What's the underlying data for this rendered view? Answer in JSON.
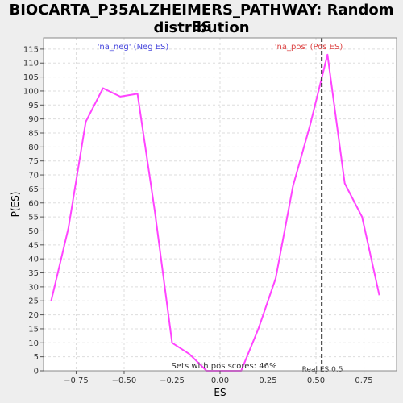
{
  "chart_data": {
    "type": "line",
    "title_lines": [
      "BIOCARTA_P35ALZHEIMERS_PATHWAY: Random ES",
      "distribution"
    ],
    "xlabel": "ES",
    "ylabel": "P(ES)",
    "xlim": [
      -0.92,
      0.92
    ],
    "ylim": [
      0,
      119
    ],
    "x_ticks": [
      -0.75,
      -0.5,
      -0.25,
      0.0,
      0.25,
      0.5,
      0.75
    ],
    "x_tick_labels": [
      "−0.75",
      "−0.50",
      "−0.25",
      "0.00",
      "0.25",
      "0.50",
      "0.75"
    ],
    "y_ticks": [
      0,
      5,
      10,
      15,
      20,
      25,
      30,
      35,
      40,
      45,
      50,
      55,
      60,
      65,
      70,
      75,
      80,
      85,
      90,
      95,
      100,
      105,
      110,
      115
    ],
    "grid": true,
    "series": [
      {
        "color": "#ff44ff",
        "x": [
          -0.88,
          -0.79,
          -0.7,
          -0.61,
          -0.52,
          -0.43,
          -0.34,
          -0.25,
          -0.16,
          -0.07,
          0.02,
          0.11,
          0.2,
          0.29,
          0.38,
          0.47,
          0.56,
          0.65,
          0.74,
          0.83
        ],
        "y": [
          25,
          51,
          89,
          101,
          98,
          99,
          57,
          10,
          6,
          0,
          0,
          0,
          15,
          33,
          66,
          88,
          113,
          67,
          55,
          27
        ]
      }
    ],
    "annotations": {
      "neg_label": "'na_neg' (Neg ES)",
      "neg_color": "#4444dd",
      "pos_label": "'na_pos' (Pos ES)",
      "pos_color": "#dd4444",
      "pos_scores_text": "Sets with pos scores: 46%",
      "real_es_label": "Real ES 0.5",
      "real_es_value": 0.53
    }
  }
}
